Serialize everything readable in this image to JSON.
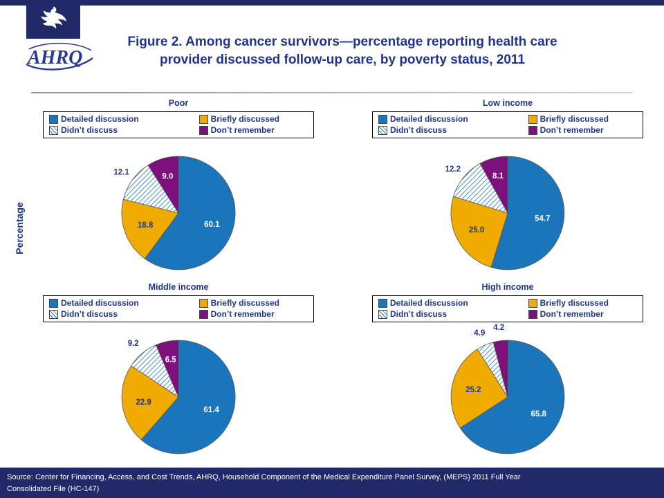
{
  "header": {
    "title_line1": "Figure 2. Among cancer survivors—percentage reporting health care",
    "title_line2": "provider discussed follow-up care, by poverty status, 2011",
    "ahrq_logo_text": "AHRQ"
  },
  "ylabel": "Percentage",
  "legend": {
    "items": [
      {
        "label": "Detailed discussion",
        "swatch": "detailed"
      },
      {
        "label": "Briefly discussed",
        "swatch": "briefly"
      },
      {
        "label": "Didn’t discuss",
        "swatch": "hatch"
      },
      {
        "label": "Don’t remember",
        "swatch": "remember"
      }
    ]
  },
  "chart_data": {
    "type": "pie",
    "unit": "percent",
    "categories": [
      "Detailed discussion",
      "Briefly discussed",
      "Didn’t discuss",
      "Don’t remember"
    ],
    "charts": [
      {
        "title": "Poor",
        "values": [
          60.1,
          18.8,
          12.1,
          9.0
        ],
        "labels": [
          "60.1",
          "18.8",
          "12.1",
          "9.0"
        ]
      },
      {
        "title": "Low income",
        "values": [
          54.7,
          25.0,
          12.2,
          8.1
        ],
        "labels": [
          "54.7",
          "25.0",
          "12.2",
          "8.1"
        ]
      },
      {
        "title": "Middle income",
        "values": [
          61.4,
          22.9,
          9.2,
          6.5
        ],
        "labels": [
          "61.4",
          "22.9",
          "9.2",
          "6.5"
        ]
      },
      {
        "title": "High income",
        "values": [
          65.8,
          25.2,
          4.9,
          4.2
        ],
        "labels": [
          "65.8",
          "25.2",
          "4.9",
          "4.2"
        ]
      }
    ],
    "colors": {
      "detailed": "#1B75BB",
      "briefly": "#F0AB00",
      "didnt_fill": "hatch",
      "hatch_line": "#1B75BB",
      "remember": "#7D107D"
    },
    "legend_position": "top-boxed",
    "value_labels": "shown-one-decimal"
  },
  "footer": {
    "source_line1": "Source: Center for Financing, Access, and Cost Trends, AHRQ, Household Component of the Medical Expenditure Panel Survey, (MEPS) 2011 Full Year",
    "source_line2": "Consolidated File (HC-147)"
  },
  "colors": {
    "bar": "#212A68",
    "text": "#1F3488",
    "logo": "#2B3990",
    "white": "#FFFFFF"
  }
}
